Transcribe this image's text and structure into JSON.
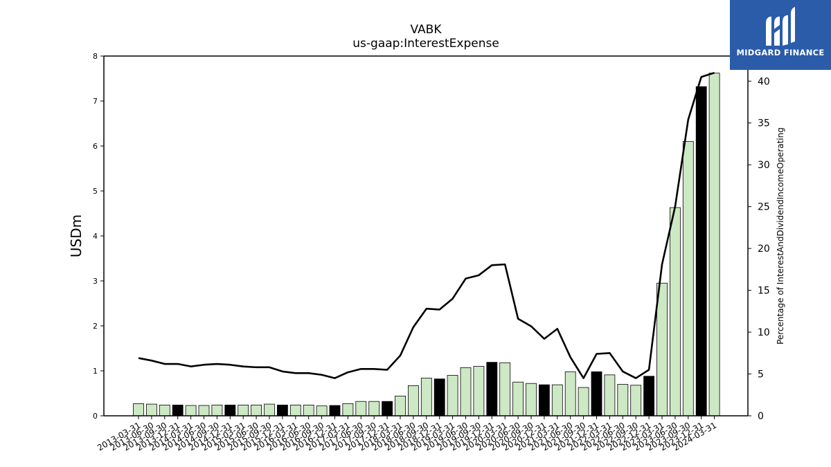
{
  "brand": {
    "name": "MIDGARD FINANCE",
    "bg_color": "#2a5caa"
  },
  "chart_data": {
    "type": "bar",
    "title": "VABK",
    "subtitle": "us-gaap:InterestExpense",
    "ylabel": "USDm",
    "y2label": "Percentage of InterestAndDividendIncomeOperating",
    "ylim": [
      0,
      8
    ],
    "y2lim": [
      0,
      43
    ],
    "yticks": [
      0,
      1,
      2,
      3,
      4,
      5,
      6,
      7,
      8
    ],
    "y2ticks": [
      0,
      5,
      10,
      15,
      20,
      25,
      30,
      35,
      40
    ],
    "categories": [
      "2013-03-31",
      "2013-06-30",
      "2013-09-30",
      "2013-12-31",
      "2014-03-31",
      "2014-06-30",
      "2014-09-30",
      "2014-12-31",
      "2015-03-31",
      "2015-06-30",
      "2015-09-30",
      "2015-12-31",
      "2016-03-31",
      "2016-06-30",
      "2016-09-30",
      "2016-12-31",
      "2017-03-31",
      "2017-06-30",
      "2017-09-30",
      "2017-12-31",
      "2018-03-31",
      "2018-06-30",
      "2018-09-30",
      "2018-12-31",
      "2019-03-31",
      "2019-06-30",
      "2019-09-30",
      "2019-12-31",
      "2020-03-31",
      "2020-06-30",
      "2020-09-30",
      "2020-12-31",
      "2021-03-31",
      "2021-06-30",
      "2021-09-30",
      "2021-12-31",
      "2022-03-31",
      "2022-06-30",
      "2022-09-30",
      "2022-12-31",
      "2023-03-31",
      "2023-06-30",
      "2023-09-30",
      "2023-12-31",
      "2024-03-31"
    ],
    "series": [
      {
        "type": "bar",
        "values": [
          0.27,
          0.26,
          0.24,
          0.24,
          0.23,
          0.23,
          0.24,
          0.24,
          0.24,
          0.24,
          0.26,
          0.24,
          0.24,
          0.24,
          0.22,
          0.23,
          0.27,
          0.32,
          0.32,
          0.32,
          0.44,
          0.67,
          0.84,
          0.82,
          0.9,
          1.07,
          1.1,
          1.19,
          1.18,
          0.75,
          0.72,
          0.69,
          0.69,
          0.98,
          0.63,
          0.98,
          0.91,
          0.7,
          0.68,
          0.88,
          2.95,
          4.63,
          6.1,
          7.32,
          7.62
        ],
        "highlight_every": 4,
        "highlight_offset": 3,
        "color": "#cde8c4",
        "highlight_color": "#000000"
      },
      {
        "type": "line",
        "axis": "right",
        "values": [
          6.9,
          6.6,
          6.2,
          6.2,
          5.9,
          6.1,
          6.2,
          6.1,
          5.9,
          5.8,
          5.8,
          5.3,
          5.1,
          5.1,
          4.9,
          4.5,
          5.2,
          5.6,
          5.6,
          5.5,
          7.2,
          10.6,
          12.8,
          12.7,
          14.0,
          16.4,
          16.8,
          18.0,
          18.1,
          11.6,
          10.7,
          9.2,
          10.4,
          7.0,
          4.5,
          7.4,
          7.5,
          5.3,
          4.5,
          5.5,
          18.1,
          25.0,
          35.4,
          40.5,
          41.0
        ],
        "color": "#000000"
      }
    ]
  }
}
